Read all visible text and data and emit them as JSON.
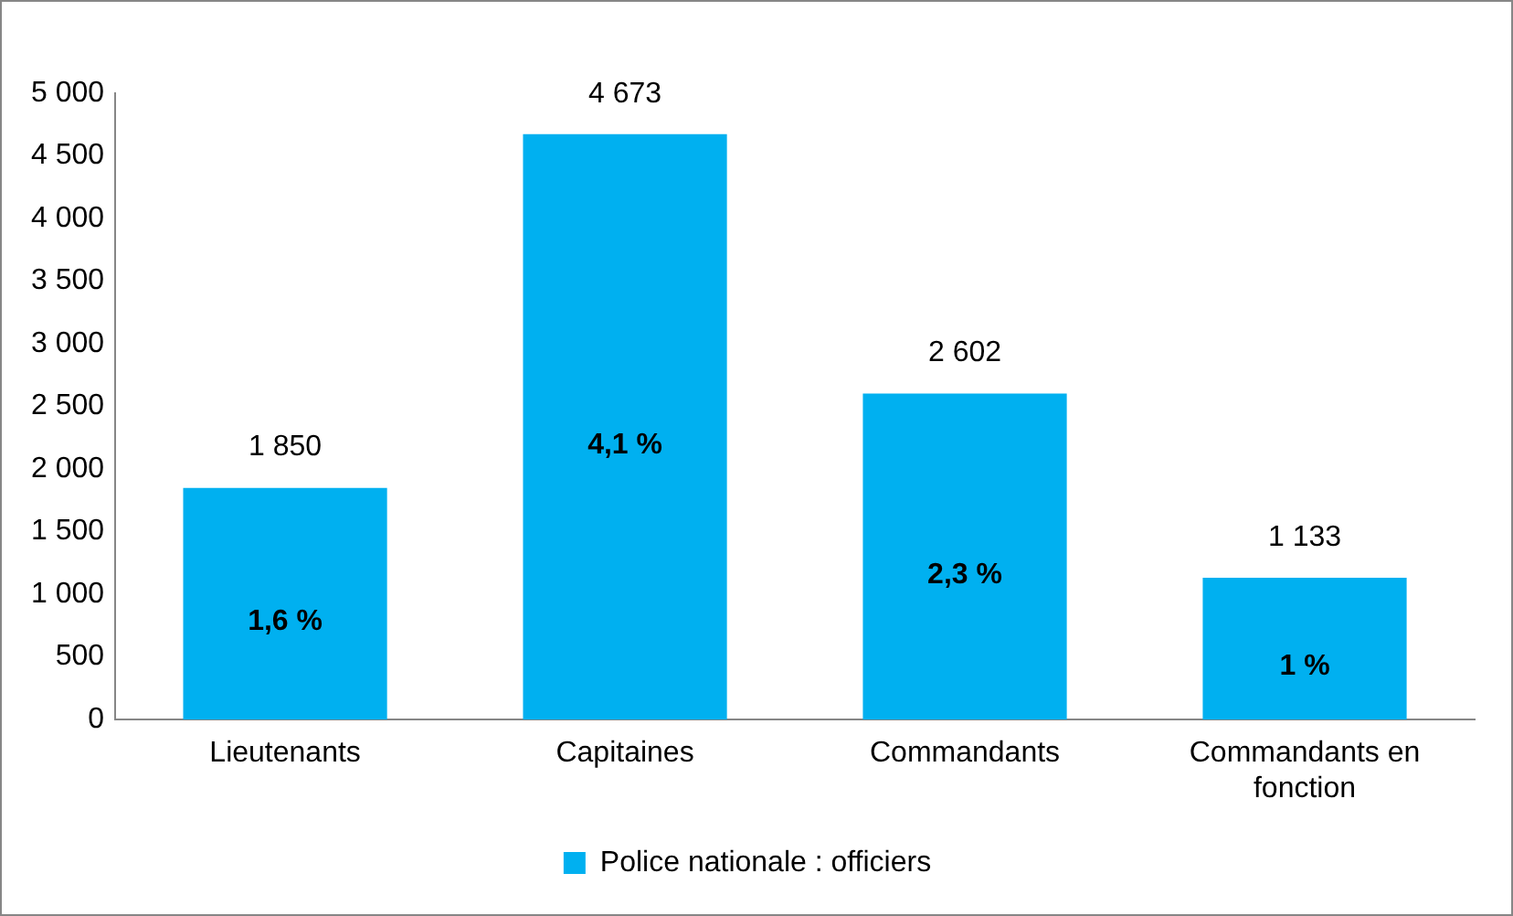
{
  "chart_data": {
    "type": "bar",
    "categories": [
      "Lieutenants",
      "Capitaines",
      "Commandants",
      "Commandants en fonction"
    ],
    "series": [
      {
        "name": "Police nationale : officiers",
        "color": "#00b0f0",
        "values": [
          1850,
          4673,
          2602,
          1133
        ],
        "value_labels": [
          "1 850",
          "4 673",
          "2 602",
          "1 133"
        ]
      }
    ],
    "ylim": [
      0,
      5000
    ],
    "yticks": [
      0,
      500,
      {
        "value": 1000,
        "label": "1 000"
      },
      {
        "value": 1500,
        "label": "1 500"
      },
      {
        "value": 2000,
        "label": "2 000"
      },
      {
        "value": 2500,
        "label": "2 500"
      },
      {
        "value": 3000,
        "label": "3 000"
      },
      {
        "value": 3500,
        "label": "3 500"
      },
      {
        "value": 4000,
        "label": "4 000"
      },
      {
        "value": 4500,
        "label": "4 500"
      },
      {
        "value": 5000,
        "label": "5 000"
      }
    ],
    "annotations": [
      "1,6 %",
      "4,1 %",
      "2,3 %",
      "1 %"
    ],
    "grid": false,
    "legend": "bottom"
  }
}
